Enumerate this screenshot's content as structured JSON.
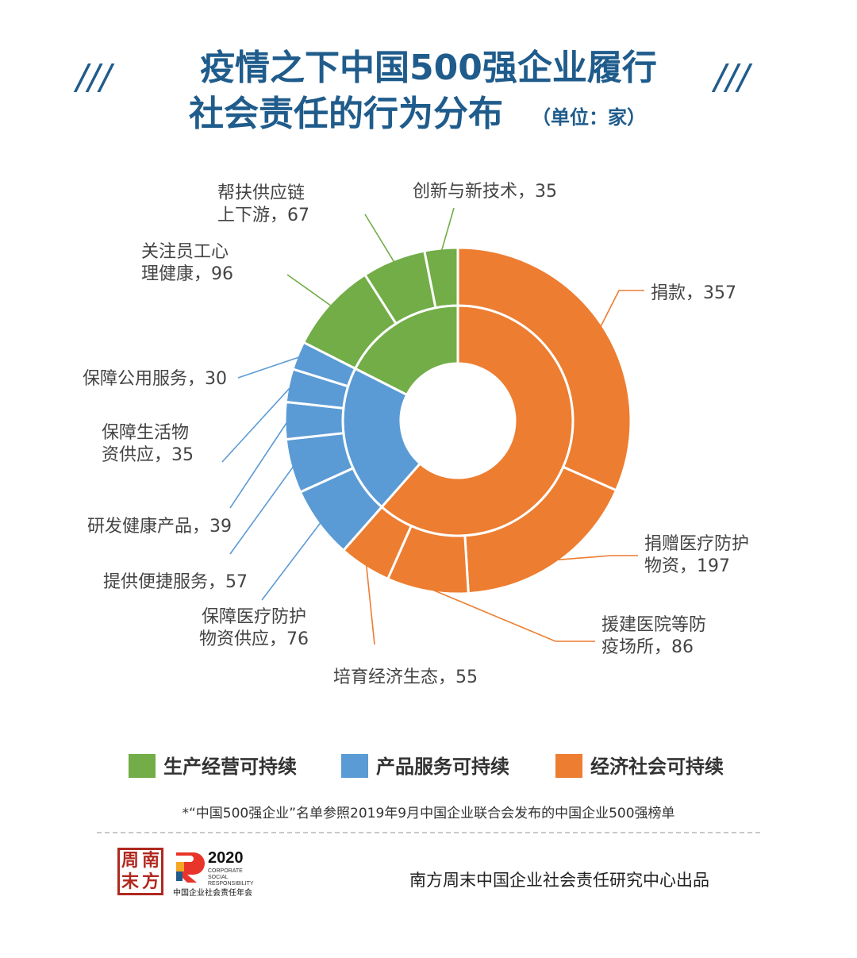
{
  "title": {
    "line1": "疫情之下中国500强企业履行",
    "line2": "社会责任的行为分布",
    "unit": "（单位：家）"
  },
  "decor": {
    "slashes": "///"
  },
  "colors": {
    "green": "#72ad47",
    "blue": "#5b9bd5",
    "orange": "#ed7d31",
    "title": "#1f5c8c",
    "label": "#444444"
  },
  "chart_data": {
    "type": "pie",
    "subtype": "sunburst",
    "inner_ring": [
      {
        "category": "经济社会可持续",
        "color": "#ed7d31",
        "value": 695
      },
      {
        "category": "产品服务可持续",
        "color": "#5b9bd5",
        "value": 237
      },
      {
        "category": "生产经营可持续",
        "color": "#72ad47",
        "value": 198
      }
    ],
    "outer_ring": [
      {
        "label": [
          "捐款，357"
        ],
        "name": "捐款",
        "value": 357,
        "group": "经济社会可持续"
      },
      {
        "label": [
          "捐赠医疗防护",
          "物资，197"
        ],
        "name": "捐赠医疗防护物资",
        "value": 197,
        "group": "经济社会可持续"
      },
      {
        "label": [
          "援建医院等防",
          "疫场所，86"
        ],
        "name": "援建医院等防疫场所",
        "value": 86,
        "group": "经济社会可持续"
      },
      {
        "label": [
          "培育经济生态，55"
        ],
        "name": "培育经济生态",
        "value": 55,
        "group": "经济社会可持续"
      },
      {
        "label": [
          "保障医疗防护",
          "物资供应，76"
        ],
        "name": "保障医疗防护物资供应",
        "value": 76,
        "group": "产品服务可持续"
      },
      {
        "label": [
          "提供便捷服务，57"
        ],
        "name": "提供便捷服务",
        "value": 57,
        "group": "产品服务可持续"
      },
      {
        "label": [
          "研发健康产品，39"
        ],
        "name": "研发健康产品",
        "value": 39,
        "group": "产品服务可持续"
      },
      {
        "label": [
          "保障生活物",
          "资供应，35"
        ],
        "name": "保障生活物资供应",
        "value": 35,
        "group": "产品服务可持续"
      },
      {
        "label": [
          "保障公用服务，30"
        ],
        "name": "保障公用服务",
        "value": 30,
        "group": "产品服务可持续"
      },
      {
        "label": [
          "关注员工心",
          "理健康，96"
        ],
        "name": "关注员工心理健康",
        "value": 96,
        "group": "生产经营可持续"
      },
      {
        "label": [
          "帮扶供应链",
          "上下游，67"
        ],
        "name": "帮扶供应链上下游",
        "value": 67,
        "group": "生产经营可持续"
      },
      {
        "label": [
          "创新与新技术，35"
        ],
        "name": "创新与新技术",
        "value": 35,
        "group": "生产经营可持续"
      }
    ],
    "legend": [
      {
        "label": "生产经营可持续",
        "color": "#72ad47"
      },
      {
        "label": "产品服务可持续",
        "color": "#5b9bd5"
      },
      {
        "label": "经济社会可持续",
        "color": "#ed7d31"
      }
    ],
    "legend_position": "bottom"
  },
  "footnote": "*“中国500强企业”名单参照2019年9月中国企业联合会发布的中国企业500强榜单",
  "logos": {
    "seal_chars": [
      "周",
      "南",
      "末",
      "方"
    ],
    "csr_year": "2020",
    "csr_lines": [
      "CORPORATE",
      "SOCIAL",
      "RESPONSIBILITY"
    ],
    "csr_cn": "中国企业社会责任年会"
  },
  "producer": "南方周末中国企业社会责任研究中心出品"
}
